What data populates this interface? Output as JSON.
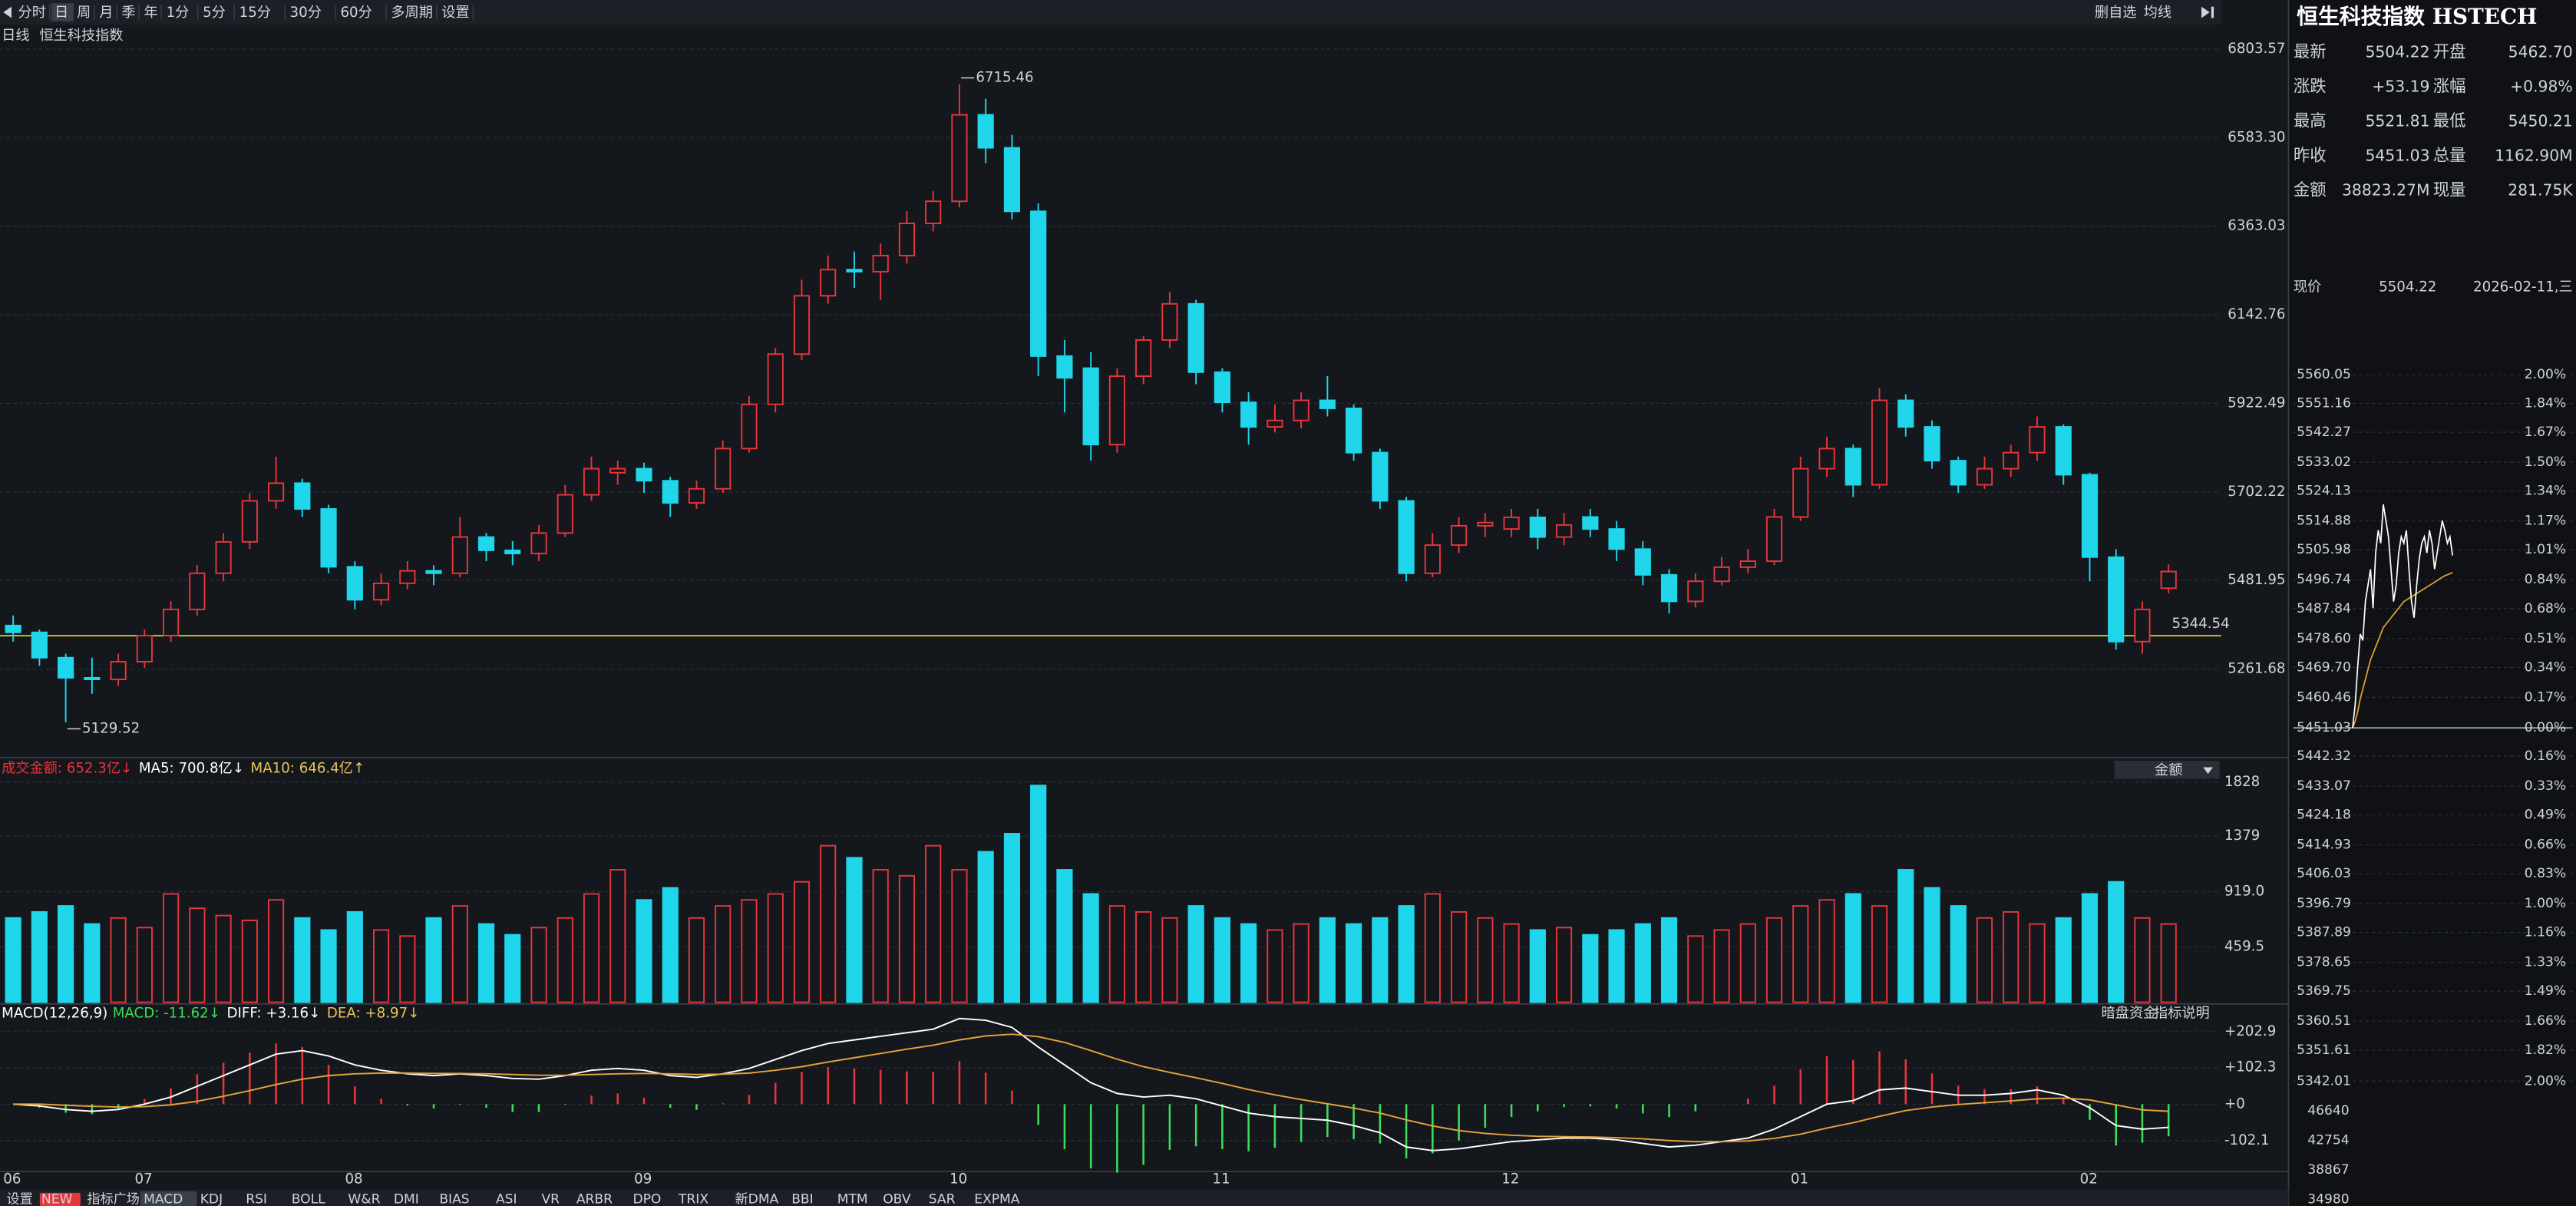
{
  "toolbar": {
    "left": [
      "分时",
      "日",
      "周",
      "月",
      "季",
      "年",
      "1分",
      "5分",
      "15分",
      "30分",
      "60分",
      "多周期",
      "设置"
    ],
    "right": [
      "删自选",
      "均线"
    ]
  },
  "caption": {
    "period": "日线",
    "name": "恒生科技指数"
  },
  "kline": {
    "type": "candlestick",
    "up_color": "#e8353b",
    "down_color": "#1fd6ea",
    "grid": true,
    "categories": [
      "06",
      null,
      null,
      null,
      null,
      "07",
      null,
      null,
      null,
      null,
      null,
      null,
      null,
      "08",
      null,
      null,
      null,
      null,
      null,
      null,
      null,
      null,
      null,
      null,
      "09",
      null,
      null,
      null,
      null,
      null,
      null,
      null,
      null,
      null,
      null,
      null,
      "10",
      null,
      null,
      null,
      null,
      null,
      null,
      null,
      null,
      null,
      "11",
      null,
      null,
      null,
      null,
      null,
      null,
      null,
      null,
      null,
      null,
      "12",
      null,
      null,
      null,
      null,
      null,
      null,
      null,
      null,
      null,
      null,
      "01",
      null,
      null,
      null,
      null,
      null,
      null,
      null,
      null,
      null,
      null,
      "02",
      null,
      null,
      null
    ],
    "ohlc": [
      [
        5370,
        5395,
        5330,
        5353
      ],
      [
        5353,
        5360,
        5270,
        5290
      ],
      [
        5290,
        5300,
        5129.52,
        5240
      ],
      [
        5240,
        5290,
        5200,
        5236
      ],
      [
        5236,
        5300,
        5220,
        5280
      ],
      [
        5280,
        5360,
        5265,
        5345
      ],
      [
        5345,
        5430,
        5330,
        5410
      ],
      [
        5410,
        5520,
        5395,
        5500
      ],
      [
        5500,
        5600,
        5480,
        5578
      ],
      [
        5578,
        5700,
        5560,
        5680
      ],
      [
        5680,
        5790,
        5660,
        5724
      ],
      [
        5724,
        5735,
        5640,
        5660
      ],
      [
        5660,
        5670,
        5500,
        5516
      ],
      [
        5516,
        5530,
        5410,
        5434
      ],
      [
        5434,
        5500,
        5420,
        5475
      ],
      [
        5475,
        5530,
        5460,
        5506
      ],
      [
        5506,
        5520,
        5470,
        5500
      ],
      [
        5500,
        5640,
        5490,
        5590
      ],
      [
        5590,
        5600,
        5530,
        5557
      ],
      [
        5557,
        5580,
        5520,
        5549
      ],
      [
        5549,
        5620,
        5530,
        5600
      ],
      [
        5600,
        5720,
        5590,
        5695
      ],
      [
        5695,
        5790,
        5680,
        5760
      ],
      [
        5750,
        5780,
        5720,
        5760
      ],
      [
        5760,
        5775,
        5700,
        5730
      ],
      [
        5730,
        5740,
        5640,
        5675
      ],
      [
        5675,
        5730,
        5660,
        5710
      ],
      [
        5710,
        5830,
        5700,
        5810
      ],
      [
        5810,
        5940,
        5800,
        5920
      ],
      [
        5920,
        6060,
        5900,
        6045
      ],
      [
        6045,
        6230,
        6030,
        6190
      ],
      [
        6190,
        6290,
        6170,
        6255
      ],
      [
        6255,
        6300,
        6210,
        6250
      ],
      [
        6250,
        6320,
        6180,
        6290
      ],
      [
        6290,
        6400,
        6270,
        6370
      ],
      [
        6370,
        6450,
        6350,
        6425
      ],
      [
        6425,
        6715.46,
        6410,
        6640
      ],
      [
        6640,
        6680,
        6520,
        6558
      ],
      [
        6558,
        6590,
        6380,
        6400
      ],
      [
        6400,
        6420,
        5990,
        6040
      ],
      [
        6040,
        6080,
        5900,
        5986
      ],
      [
        6010,
        6050,
        5780,
        5820
      ],
      [
        5820,
        6010,
        5800,
        5990
      ],
      [
        5990,
        6090,
        5970,
        6080
      ],
      [
        6080,
        6200,
        6060,
        6170
      ],
      [
        6170,
        6180,
        5970,
        6000
      ],
      [
        6000,
        6010,
        5900,
        5925
      ],
      [
        5925,
        5950,
        5820,
        5864
      ],
      [
        5864,
        5920,
        5850,
        5880
      ],
      [
        5880,
        5950,
        5860,
        5930
      ],
      [
        5930,
        5990,
        5890,
        5910
      ],
      [
        5910,
        5920,
        5780,
        5800
      ],
      [
        5800,
        5810,
        5660,
        5680
      ],
      [
        5680,
        5690,
        5480,
        5500
      ],
      [
        5500,
        5600,
        5490,
        5570
      ],
      [
        5570,
        5640,
        5550,
        5618
      ],
      [
        5618,
        5650,
        5590,
        5626
      ],
      [
        5610,
        5660,
        5590,
        5639
      ],
      [
        5639,
        5660,
        5560,
        5590
      ],
      [
        5590,
        5650,
        5570,
        5620
      ],
      [
        5640,
        5660,
        5590,
        5610
      ],
      [
        5610,
        5630,
        5530,
        5560
      ],
      [
        5560,
        5580,
        5470,
        5496
      ],
      [
        5496,
        5510,
        5400,
        5430
      ],
      [
        5430,
        5500,
        5415,
        5480
      ],
      [
        5480,
        5540,
        5470,
        5515
      ],
      [
        5515,
        5560,
        5500,
        5530
      ],
      [
        5530,
        5660,
        5520,
        5640
      ],
      [
        5640,
        5790,
        5630,
        5760
      ],
      [
        5760,
        5840,
        5740,
        5810
      ],
      [
        5810,
        5820,
        5690,
        5720
      ],
      [
        5720,
        5960,
        5710,
        5930
      ],
      [
        5930,
        5945,
        5840,
        5864
      ],
      [
        5864,
        5880,
        5760,
        5780
      ],
      [
        5780,
        5790,
        5700,
        5720
      ],
      [
        5720,
        5790,
        5710,
        5760
      ],
      [
        5760,
        5820,
        5740,
        5800
      ],
      [
        5800,
        5890,
        5780,
        5864
      ],
      [
        5864,
        5870,
        5720,
        5745
      ],
      [
        5745,
        5750,
        5480,
        5540
      ],
      [
        5540,
        5560,
        5310,
        5330
      ],
      [
        5330,
        5430,
        5300,
        5410
      ],
      [
        5462.7,
        5521.81,
        5450.21,
        5504.22
      ]
    ],
    "ylim": [
      5046,
      6852
    ],
    "yticks": [
      5261.68,
      5481.95,
      5702.22,
      5922.49,
      6142.76,
      6363.03,
      {
        "value": 6583.3,
        "label": "6583.30"
      },
      6803.57
    ],
    "ref_line": {
      "value": 5344.54,
      "color": "#e5d21a"
    }
  },
  "volume": {
    "type": "bar",
    "header": [
      "成交金额: 652.3亿↓",
      "MA5: 700.8亿↓",
      "MA10: 646.4亿↑"
    ],
    "selector": "金额",
    "values": [
      700,
      750,
      800,
      650,
      700,
      620,
      900,
      780,
      720,
      680,
      850,
      700,
      600,
      750,
      600,
      550,
      700,
      800,
      650,
      560,
      620,
      700,
      900,
      1100,
      850,
      950,
      700,
      800,
      850,
      900,
      1000,
      1300,
      1200,
      1100,
      1050,
      1300,
      1100,
      1250,
      1400,
      1800,
      1100,
      900,
      800,
      750,
      700,
      800,
      700,
      650,
      600,
      650,
      700,
      650,
      700,
      800,
      900,
      750,
      700,
      650,
      600,
      620,
      560,
      600,
      650,
      700,
      550,
      600,
      650,
      700,
      800,
      850,
      900,
      800,
      1100,
      950,
      800,
      700,
      750,
      650,
      700,
      900,
      1000,
      700,
      650
    ],
    "ylim": [
      0,
      1910
    ],
    "yticks": [
      459.5,
      {
        "value": 919,
        "label": "919.0"
      },
      1379,
      1828
    ]
  },
  "macd": {
    "type": "macd",
    "header": [
      "MACD(12,26,9)",
      "MACD: -11.62↓",
      "DIFF: +3.16↓",
      "DEA: +8.97↓"
    ],
    "buttons": [
      "暗盘资金",
      "指标说明"
    ],
    "diff": [
      0,
      -5,
      -15,
      -20,
      -15,
      0,
      20,
      50,
      80,
      110,
      140,
      150,
      135,
      110,
      95,
      85,
      80,
      85,
      80,
      72,
      70,
      80,
      95,
      100,
      95,
      80,
      75,
      85,
      100,
      125,
      150,
      170,
      180,
      190,
      200,
      210,
      240,
      235,
      215,
      160,
      110,
      60,
      30,
      20,
      25,
      15,
      -5,
      -25,
      -35,
      -40,
      -45,
      -60,
      -80,
      -120,
      -130,
      -125,
      -115,
      -105,
      -100,
      -95,
      -95,
      -100,
      -110,
      -120,
      -115,
      -105,
      -95,
      -70,
      -35,
      0,
      10,
      40,
      45,
      35,
      25,
      25,
      30,
      40,
      25,
      -10,
      -60,
      -70,
      -65
    ],
    "dea": [
      0,
      0,
      -3,
      -6,
      -8,
      -7,
      -2,
      8,
      22,
      38,
      55,
      70,
      80,
      85,
      87,
      87,
      86,
      86,
      85,
      83,
      81,
      81,
      83,
      85,
      86,
      85,
      83,
      84,
      87,
      95,
      105,
      118,
      130,
      142,
      154,
      165,
      180,
      191,
      196,
      189,
      173,
      150,
      126,
      105,
      89,
      74,
      58,
      41,
      26,
      13,
      1,
      -11,
      -25,
      -44,
      -61,
      -74,
      -82,
      -87,
      -90,
      -91,
      -92,
      -94,
      -97,
      -102,
      -105,
      -105,
      -103,
      -96,
      -84,
      -67,
      -52,
      -34,
      -18,
      -8,
      -1,
      4,
      9,
      15,
      17,
      12,
      -2,
      -16,
      -20
    ],
    "hist": [
      0,
      -10,
      -24,
      -28,
      -14,
      14,
      44,
      84,
      116,
      144,
      170,
      160,
      110,
      50,
      16,
      -4,
      -12,
      -2,
      -10,
      -22,
      -22,
      -2,
      24,
      30,
      18,
      -10,
      -16,
      2,
      26,
      60,
      90,
      104,
      100,
      96,
      92,
      90,
      120,
      88,
      38,
      -58,
      -126,
      -180,
      -192,
      -170,
      -128,
      -118,
      -126,
      -132,
      -122,
      -106,
      -92,
      -98,
      -110,
      -152,
      -138,
      -102,
      -66,
      -36,
      -20,
      -8,
      -6,
      -12,
      -26,
      -36,
      -20,
      0,
      16,
      52,
      98,
      134,
      124,
      148,
      126,
      86,
      52,
      42,
      42,
      50,
      16,
      -44,
      -116,
      -108,
      -90
    ],
    "ylim": [
      -184,
      267
    ],
    "yticks": [
      {
        "value": 202.9,
        "label": "+202.9"
      },
      {
        "value": 102.3,
        "label": "+102.3"
      },
      {
        "value": 0,
        "label": "+0"
      },
      -102.1
    ]
  },
  "indicator_tabs": [
    "设置",
    "NEW",
    "指标广场",
    "MACD",
    "KDJ",
    "RSI",
    "BOLL",
    "W&R",
    "DMI",
    "BIAS",
    "ASI",
    "VR",
    "ARBR",
    "DPO",
    "TRIX",
    "新DMA",
    "BBI",
    "MTM",
    "OBV",
    "SAR",
    "EXPMA"
  ],
  "quote": {
    "title": "恒生科技指数 HSTECH",
    "rows": [
      [
        {
          "label": "最新",
          "value": "5504.22",
          "color": "#e8353b"
        },
        {
          "label": "开盘",
          "value": "5462.70",
          "color": "#e8353b"
        }
      ],
      [
        {
          "label": "涨跌",
          "value": "+53.19",
          "color": "#e8353b"
        },
        {
          "label": "涨幅",
          "value": "+0.98%",
          "color": "#e8353b"
        }
      ],
      [
        {
          "label": "最高",
          "value": "5521.81",
          "color": "#e8353b"
        },
        {
          "label": "最低",
          "value": "5450.21",
          "color": "#3ddc5a"
        }
      ],
      [
        {
          "label": "昨收",
          "value": "5451.03",
          "color": "#ffffff"
        },
        {
          "label": "总量",
          "value": "1162.90M",
          "color": "#36d6e8"
        }
      ],
      [
        {
          "label": "金额",
          "value": "38823.27M",
          "color": "#36d6e8"
        },
        {
          "label": "现量",
          "value": "281.75K",
          "color": "#36d6e8"
        }
      ]
    ],
    "current": {
      "label": "现价",
      "value": "5504.22",
      "date": "2026-02-11,三"
    }
  },
  "intraday": {
    "type": "line",
    "prev_close": 5451.03,
    "ylim": [
      5342.01,
      5560.05
    ],
    "yticks": [
      5560.05,
      5551.16,
      5542.27,
      5533.02,
      5524.13,
      5514.88,
      5505.98,
      5496.74,
      5487.84,
      {
        "value": 5478.6,
        "label": "5478.60"
      },
      {
        "value": 5469.7,
        "label": "5469.70"
      },
      5460.46,
      5451.03,
      5442.32,
      5433.07,
      5424.18,
      5414.93,
      5406.03,
      5396.79,
      5387.89,
      5378.65,
      5369.75,
      5360.51,
      5351.61,
      5342.01
    ],
    "pct_labels": [
      "2.00%",
      "1.84%",
      "1.67%",
      "1.50%",
      "1.34%",
      "1.17%",
      "1.01%",
      "0.84%",
      "0.68%",
      "0.51%",
      "0.34%",
      "0.17%",
      "0.00%",
      "0.16%",
      "0.33%",
      "0.49%",
      "0.66%",
      "0.83%",
      "1.00%",
      "1.16%",
      "1.33%",
      "1.49%",
      "1.66%",
      "1.82%",
      "2.00%"
    ],
    "price": [
      5451.03,
      5458,
      5470,
      5480,
      5478,
      5490,
      5495,
      5500,
      5488,
      5505,
      5512,
      5508,
      5520,
      5515,
      5510,
      5500,
      5490,
      5495,
      5505,
      5510,
      5508,
      5512,
      5500,
      5490,
      5485,
      5495,
      5503,
      5508,
      5510,
      5505,
      5512,
      5508,
      5500,
      5505,
      5510,
      5515,
      5512,
      5508,
      5510,
      5504.22
    ],
    "avg": [
      5451.03,
      5453,
      5456,
      5460,
      5463,
      5466,
      5469,
      5472,
      5474,
      5476,
      5478,
      5480,
      5482,
      5483,
      5484,
      5485,
      5486,
      5487,
      5488,
      5489,
      5490,
      5490.5,
      5491,
      5491.5,
      5492,
      5492.5,
      5493,
      5493.5,
      5494,
      5494.5,
      5495,
      5495.5,
      5496,
      5496.5,
      5497,
      5497.5,
      5498,
      5498.3,
      5498.6,
      5499
    ],
    "volume_ticks": [
      46640,
      42754,
      38867,
      34980
    ]
  }
}
